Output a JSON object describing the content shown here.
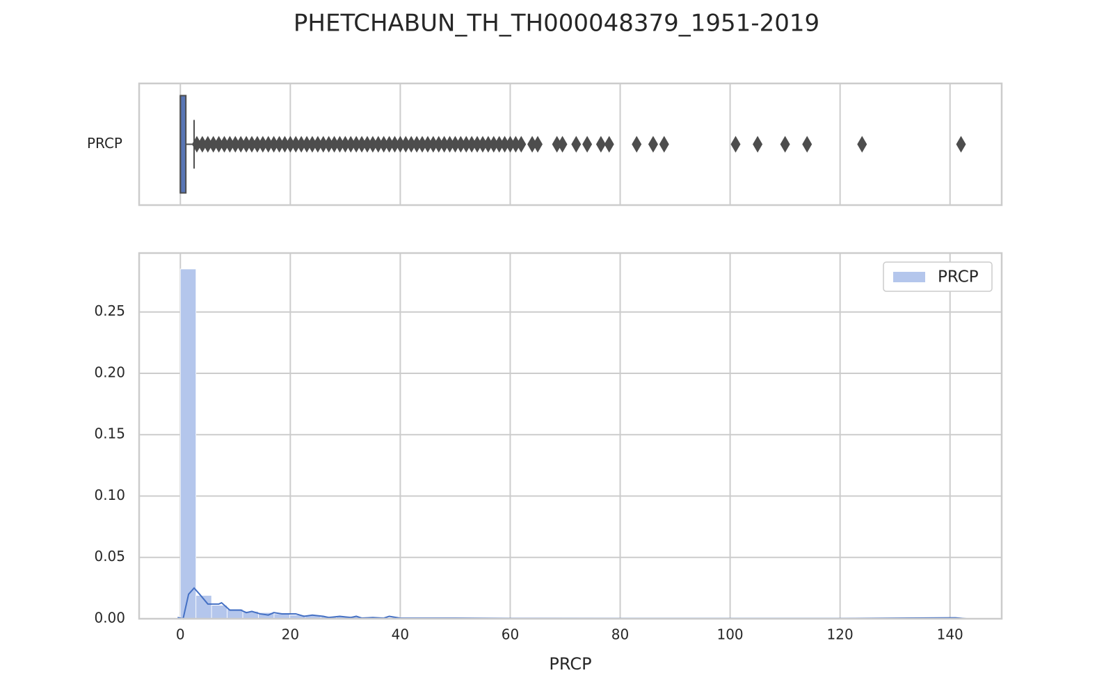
{
  "title": "PHETCHABUN_TH_TH000048379_1951-2019",
  "chart_data": [
    {
      "type": "box",
      "categories": [
        "PRCP"
      ],
      "color": "#5875b5",
      "outlier_color": "#4d4d4d",
      "xlim": [
        -7.5,
        149.4
      ],
      "xticks": [
        0,
        20,
        40,
        60,
        80,
        100,
        120,
        140
      ],
      "grid": true,
      "whisker_low": 0,
      "q1": 0,
      "median": 0,
      "q3": 1.0,
      "whisker_high": 2.5,
      "outliers": [
        3,
        4,
        5,
        6,
        7,
        8,
        9,
        10,
        11,
        12,
        13,
        14,
        15,
        16,
        17,
        18,
        19,
        20,
        21,
        22,
        23,
        24,
        25,
        26,
        27,
        28,
        29,
        30,
        31,
        32,
        33,
        34,
        35,
        36,
        37,
        38,
        39,
        40,
        41,
        42,
        43,
        44,
        45,
        46,
        47,
        48,
        49,
        50,
        51,
        52,
        53,
        54,
        55,
        56,
        57,
        58,
        59,
        60,
        61,
        62,
        64,
        65,
        68.5,
        69.5,
        72,
        74,
        76.5,
        78,
        83,
        86,
        88,
        101,
        105,
        110,
        114,
        124,
        142
      ]
    },
    {
      "type": "histogram",
      "xlabel": "PRCP",
      "name": "PRCP",
      "color": "#b4c6ec",
      "xlim": [
        -7.5,
        149.4
      ],
      "xticks": [
        0,
        20,
        40,
        60,
        80,
        100,
        120,
        140
      ],
      "ylim": [
        0,
        0.298
      ],
      "yticks": [
        {
          "value": 0,
          "label": "0.00"
        },
        {
          "value": 0.05,
          "label": "0.05"
        },
        {
          "value": 0.1,
          "label": "0.10"
        },
        {
          "value": 0.15,
          "label": "0.15"
        },
        {
          "value": 0.2,
          "label": "0.20"
        },
        {
          "value": 0.25,
          "label": "0.25"
        }
      ],
      "grid": true,
      "legend": "upper right",
      "bins": [
        0,
        2.84,
        5.68,
        8.52,
        11.36,
        14.2,
        17.04,
        19.88,
        22.72,
        25.56,
        28.4,
        31.24,
        34.08,
        36.92,
        39.76,
        42.6,
        45.44,
        48.28,
        51.12,
        53.96,
        56.8,
        59.64,
        62.48,
        65.32,
        68.16,
        71,
        73.84,
        76.68,
        79.52,
        82.36,
        85.2,
        88.04,
        90.88,
        93.72,
        96.56,
        99.4,
        102.24,
        105.08,
        107.92,
        110.76,
        113.6,
        116.44,
        119.28,
        122.12,
        124.96,
        127.8,
        130.64,
        133.48,
        136.32,
        139.16,
        142
      ],
      "values": [
        0.285,
        0.019,
        0.011,
        0.008,
        0.006,
        0.005,
        0.004,
        0.003,
        0.003,
        0.002,
        0.002,
        0.0015,
        0.0012,
        0.001,
        0.001,
        0.0008,
        0.0007,
        0.0006,
        0.0005,
        0.0005,
        0.0004,
        0.0003,
        0.0003,
        0.0002,
        0.0002,
        0.0002,
        0.0001,
        0.0001,
        0.0001,
        0.0001,
        0.0001,
        0.0001,
        0,
        0,
        0,
        0.0001,
        0,
        0.0001,
        0,
        0.0001,
        0.0001,
        0,
        0,
        0,
        0.0001,
        0,
        0,
        0,
        0,
        0.0001
      ],
      "kde": {
        "color": "#4470c4",
        "x": [
          -0.5,
          0.5,
          1.5,
          2.5,
          3.5,
          5,
          7,
          7.5,
          9,
          11,
          12,
          13,
          14.5,
          16,
          17,
          18.5,
          20,
          21,
          22.5,
          24,
          26,
          27,
          29,
          31,
          32,
          33,
          35,
          37,
          38,
          40,
          50,
          60,
          80,
          100,
          120,
          141,
          143
        ],
        "values": [
          0.001,
          0,
          0.02,
          0.025,
          0.02,
          0.012,
          0.012,
          0.013,
          0.007,
          0.007,
          0.005,
          0.006,
          0.004,
          0.003,
          0.005,
          0.004,
          0.004,
          0.004,
          0.002,
          0.003,
          0.002,
          0.001,
          0.002,
          0.001,
          0.002,
          0.0005,
          0.001,
          0.0005,
          0.002,
          0.0005,
          0.0005,
          0.0003,
          0.0002,
          0.0002,
          0.0002,
          0.0008,
          0
        ]
      }
    }
  ]
}
